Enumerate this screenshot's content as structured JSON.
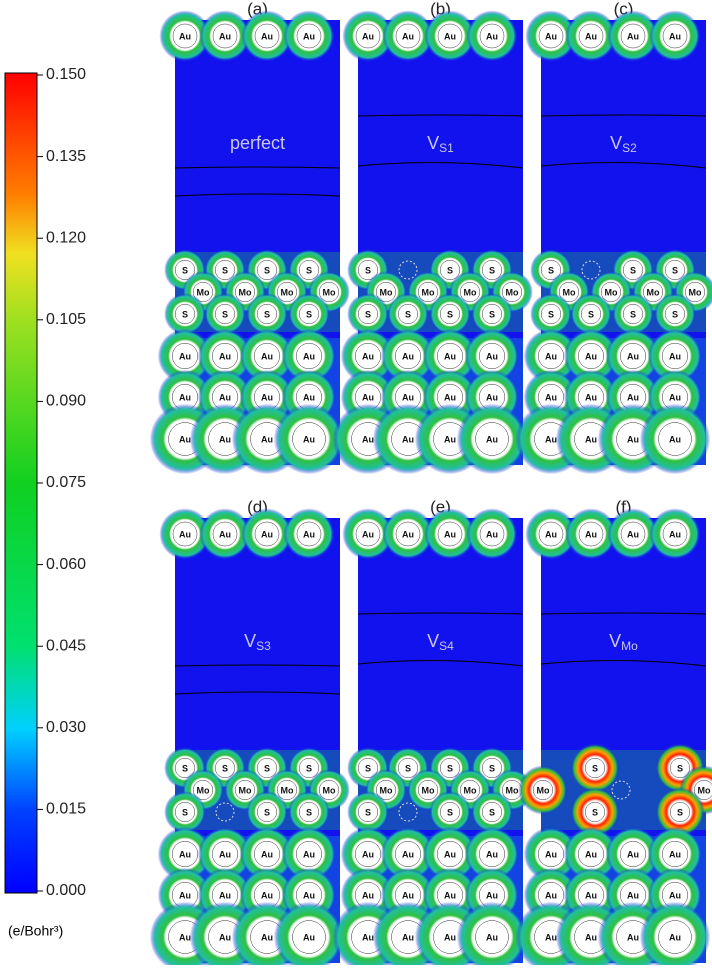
{
  "colorbar": {
    "ticks": [
      {
        "value": 0.15,
        "label": "0.150"
      },
      {
        "value": 0.135,
        "label": "0.135"
      },
      {
        "value": 0.12,
        "label": "0.120"
      },
      {
        "value": 0.105,
        "label": "0.105"
      },
      {
        "value": 0.09,
        "label": "0.090"
      },
      {
        "value": 0.075,
        "label": "0.075"
      },
      {
        "value": 0.06,
        "label": "0.060"
      },
      {
        "value": 0.045,
        "label": "0.045"
      },
      {
        "value": 0.03,
        "label": "0.030"
      },
      {
        "value": 0.015,
        "label": "0.015"
      },
      {
        "value": 0,
        "label": "0.000"
      }
    ],
    "range": [
      0,
      0.15
    ],
    "unit": "(e/Bohr³)"
  },
  "panels": [
    {
      "title": "(a)",
      "label": "perfect",
      "rows": {
        "top": [
          "Au",
          "Au",
          "Au",
          "Au"
        ],
        "s_top": [
          "S",
          "S",
          "S",
          "S"
        ],
        "mo": [
          "Mo",
          "Mo",
          "Mo",
          "Mo"
        ],
        "s_bottom": [
          "S",
          "S",
          "S",
          "S"
        ],
        "au1": [
          "Au",
          "Au",
          "Au",
          "Au"
        ],
        "au2": [
          "Au",
          "Au",
          "Au",
          "Au"
        ],
        "au3": [
          "Au",
          "Au",
          "Au",
          "Au"
        ]
      }
    },
    {
      "title": "(b)",
      "label": "V",
      "label_sub": "S1",
      "rows": {
        "top": [
          "Au",
          "Au",
          "Au",
          "Au"
        ],
        "s_top": [
          "S",
          null,
          "S",
          "S"
        ],
        "mo": [
          "Mo",
          "Mo",
          "Mo",
          "Mo"
        ],
        "s_bottom": [
          "S",
          "S",
          "S",
          "S"
        ],
        "au1": [
          "Au",
          "Au",
          "Au",
          "Au"
        ],
        "au2": [
          "Au",
          "Au",
          "Au",
          "Au"
        ],
        "au3": [
          "Au",
          "Au",
          "Au",
          "Au"
        ]
      }
    },
    {
      "title": "(c)",
      "label": "V",
      "label_sub": "S2",
      "rows": {
        "top": [
          "Au",
          "Au",
          "Au",
          "Au"
        ],
        "s_top": [
          "S",
          null,
          "S",
          "S"
        ],
        "mo": [
          "Mo",
          "Mo",
          "Mo",
          "Mo"
        ],
        "s_bottom": [
          "S",
          "S",
          "S",
          "S"
        ],
        "au1": [
          "Au",
          "Au",
          "Au",
          "Au"
        ],
        "au2": [
          "Au",
          "Au",
          "Au",
          "Au"
        ],
        "au3": [
          "Au",
          "Au",
          "Au",
          "Au"
        ]
      }
    },
    {
      "title": "(d)",
      "label": "V",
      "label_sub": "S3",
      "rows": {
        "top": [
          "Au",
          "Au",
          "Au",
          "Au"
        ],
        "s_top": [
          "S",
          "S",
          "S",
          "S"
        ],
        "mo": [
          "Mo",
          "Mo",
          "Mo",
          "Mo"
        ],
        "s_bottom": [
          "S",
          null,
          "S",
          "S"
        ],
        "au1": [
          "Au",
          "Au",
          "Au",
          "Au"
        ],
        "au2": [
          "Au",
          "Au",
          "Au",
          "Au"
        ],
        "au3": [
          "Au",
          "Au",
          "Au",
          "Au"
        ]
      }
    },
    {
      "title": "(e)",
      "label": "V",
      "label_sub": "S4",
      "rows": {
        "top": [
          "Au",
          "Au",
          "Au",
          "Au"
        ],
        "s_top": [
          "S",
          "S",
          "S",
          "S"
        ],
        "mo": [
          "Mo",
          "Mo",
          "Mo",
          "Mo"
        ],
        "s_bottom": [
          "S",
          null,
          "S",
          "S"
        ],
        "au1": [
          "Au",
          "Au",
          "Au",
          "Au"
        ],
        "au2": [
          "Au",
          "Au",
          "Au",
          "Au"
        ],
        "au3": [
          "Au",
          "Au",
          "Au",
          "Au"
        ]
      }
    },
    {
      "title": "(f)",
      "label": "V",
      "label_sub": "Mo",
      "rows": {
        "top": [
          "Au",
          "Au",
          "Au",
          "Au"
        ],
        "s_top": [
          "S",
          "S"
        ],
        "mo": [
          "Mo",
          null,
          "Mo"
        ],
        "s_bottom": [
          "S",
          "S"
        ],
        "au1": [
          "Au",
          "Au",
          "Au",
          "Au"
        ],
        "au2": [
          "Au",
          "Au",
          "Au",
          "Au"
        ],
        "au3": [
          "Au",
          "Au",
          "Au",
          "Au"
        ]
      }
    }
  ]
}
